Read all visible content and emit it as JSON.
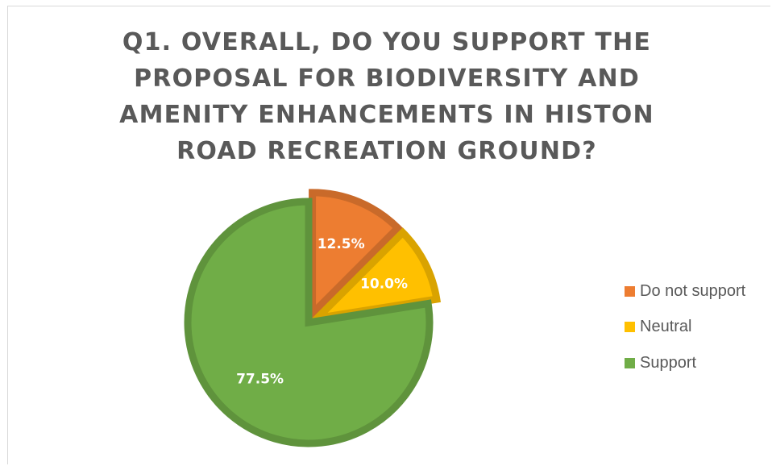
{
  "chart_data": {
    "type": "pie",
    "title": "Q1. OVERALL, DO YOU SUPPORT THE PROPOSAL FOR BIODIVERSITY AND AMENITY ENHANCEMENTS IN HISTON ROAD RECREATION GROUND?",
    "slices": [
      {
        "label": "Do not support",
        "value": 12.5,
        "data_label": "12.5%",
        "color": "#ed7d31",
        "exploded": true
      },
      {
        "label": "Neutral",
        "value": 10.0,
        "data_label": "10.0%",
        "color": "#ffc000",
        "exploded": true
      },
      {
        "label": "Support",
        "value": 77.5,
        "data_label": "77.5%",
        "color": "#70ad47",
        "exploded": false
      }
    ],
    "legend_position": "right"
  }
}
